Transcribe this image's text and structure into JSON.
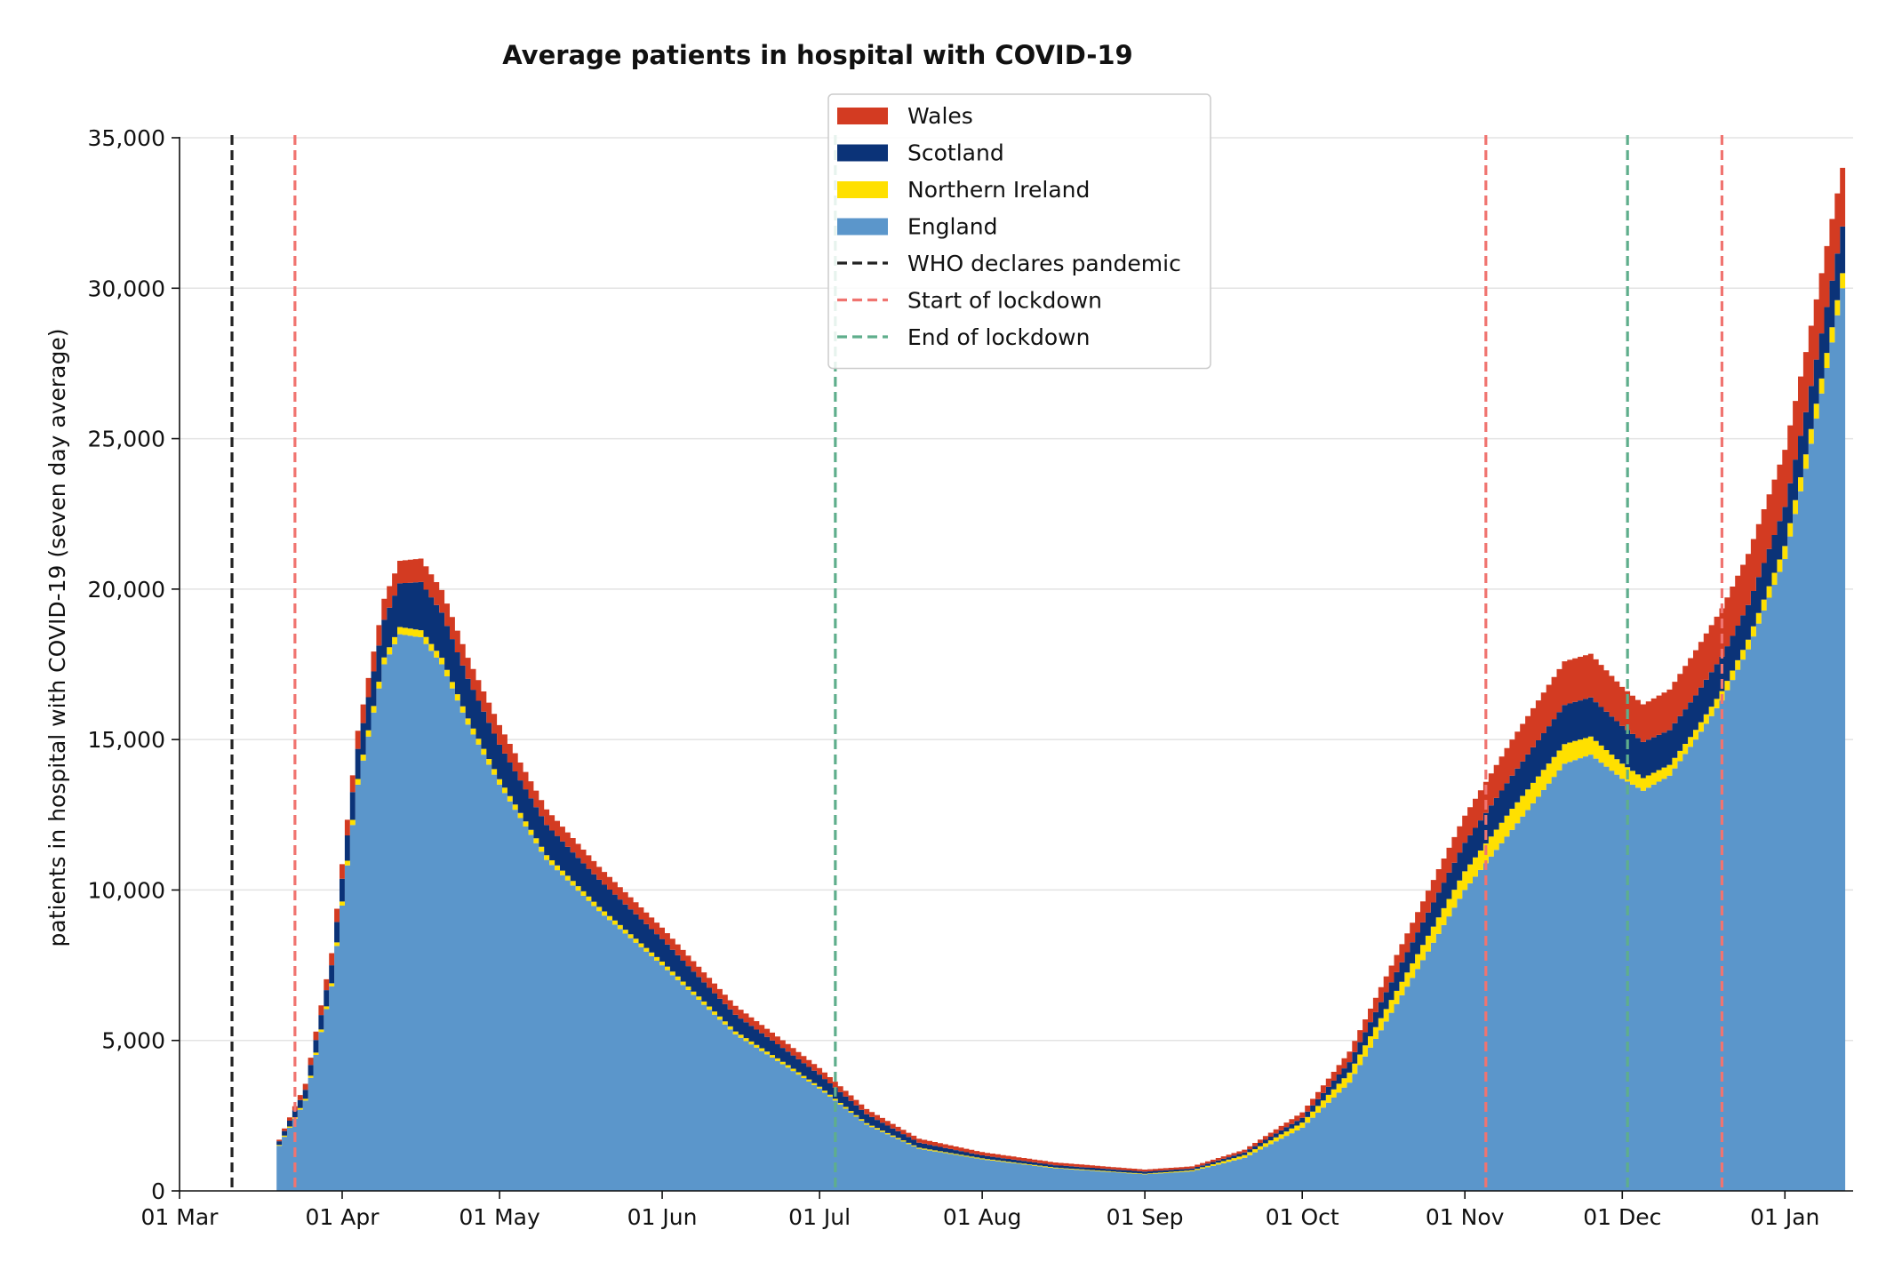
{
  "chart_data": {
    "type": "area",
    "stacked": true,
    "title": "Average patients in hospital with COVID-19",
    "xlabel": "",
    "ylabel": "patients in hospital with COVID-19 (seven day average)",
    "ylim": [
      0,
      35000
    ],
    "xlim": [
      "2020-03-01",
      "2021-01-14"
    ],
    "grid": "y",
    "legend_position": "top-center",
    "x_ticks": [
      "2020-03-01",
      "2020-04-01",
      "2020-05-01",
      "2020-06-01",
      "2020-07-01",
      "2020-08-01",
      "2020-09-01",
      "2020-10-01",
      "2020-11-01",
      "2020-12-01",
      "2021-01-01"
    ],
    "x_tick_labels": [
      "01 Mar",
      "01 Apr",
      "01 May",
      "01 Jun",
      "01 Jul",
      "01 Aug",
      "01 Sep",
      "01 Oct",
      "01 Nov",
      "01 Dec",
      "01 Jan"
    ],
    "y_ticks": [
      0,
      5000,
      10000,
      15000,
      20000,
      25000,
      30000,
      35000
    ],
    "y_tick_labels": [
      "0",
      "5,000",
      "10,000",
      "15,000",
      "20,000",
      "25,000",
      "30,000",
      "35,000"
    ],
    "x": [
      "2020-03-20",
      "2020-03-25",
      "2020-03-30",
      "2020-04-04",
      "2020-04-09",
      "2020-04-12",
      "2020-04-16",
      "2020-04-20",
      "2020-04-25",
      "2020-05-01",
      "2020-05-10",
      "2020-05-20",
      "2020-06-01",
      "2020-06-15",
      "2020-06-25",
      "2020-07-01",
      "2020-07-10",
      "2020-07-20",
      "2020-08-01",
      "2020-08-15",
      "2020-09-01",
      "2020-09-10",
      "2020-09-20",
      "2020-10-01",
      "2020-10-10",
      "2020-10-20",
      "2020-11-01",
      "2020-11-10",
      "2020-11-20",
      "2020-11-25",
      "2020-12-01",
      "2020-12-05",
      "2020-12-10",
      "2020-12-15",
      "2020-12-20",
      "2020-12-25",
      "2021-01-01",
      "2021-01-05",
      "2021-01-08",
      "2021-01-10",
      "2021-01-12"
    ],
    "series": [
      {
        "name": "England",
        "color": "#5b96cb",
        "values": [
          1500,
          3000,
          6800,
          13500,
          17500,
          18500,
          18400,
          17500,
          15500,
          13500,
          11000,
          9300,
          7500,
          5200,
          4100,
          3400,
          2200,
          1400,
          1050,
          750,
          550,
          650,
          1100,
          2100,
          3600,
          6500,
          10000,
          12000,
          14200,
          14500,
          13700,
          13300,
          13800,
          15000,
          16300,
          18000,
          21000,
          24000,
          26500,
          28200,
          30000
        ]
      },
      {
        "name": "Northern Ireland",
        "color": "#ffe000",
        "values": [
          30,
          60,
          100,
          190,
          230,
          240,
          235,
          220,
          200,
          180,
          160,
          140,
          120,
          100,
          80,
          65,
          50,
          35,
          30,
          25,
          20,
          35,
          90,
          170,
          330,
          450,
          620,
          700,
          650,
          600,
          500,
          420,
          360,
          320,
          310,
          320,
          430,
          480,
          500,
          500,
          500
        ]
      },
      {
        "name": "Scotland",
        "color": "#0b3378",
        "values": [
          120,
          300,
          600,
          1000,
          1250,
          1450,
          1600,
          1500,
          1320,
          1150,
          1000,
          900,
          750,
          550,
          450,
          400,
          300,
          170,
          100,
          80,
          70,
          60,
          90,
          160,
          350,
          650,
          950,
          1100,
          1300,
          1300,
          1250,
          1200,
          1150,
          1150,
          1150,
          1150,
          1300,
          1400,
          1500,
          1550,
          1550
        ]
      },
      {
        "name": "Wales",
        "color": "#d33b22",
        "values": [
          50,
          200,
          400,
          600,
          700,
          750,
          780,
          750,
          700,
          650,
          520,
          430,
          380,
          300,
          250,
          220,
          170,
          130,
          110,
          90,
          70,
          70,
          90,
          180,
          350,
          600,
          900,
          1200,
          1450,
          1450,
          1300,
          1250,
          1350,
          1500,
          1600,
          1700,
          1900,
          2000,
          2000,
          2050,
          1950
        ]
      }
    ],
    "events": [
      {
        "name": "WHO declares pandemic",
        "date": "2020-03-11",
        "color": "#222222"
      },
      {
        "name": "Start of lockdown",
        "date": "2020-03-23",
        "color": "#f07470"
      },
      {
        "name": "End of lockdown",
        "date": "2020-07-04",
        "color": "#5fae8c"
      },
      {
        "name": "Start of lockdown",
        "date": "2020-11-05",
        "color": "#f07470"
      },
      {
        "name": "End of lockdown",
        "date": "2020-12-02",
        "color": "#5fae8c"
      },
      {
        "name": "Start of lockdown",
        "date": "2020-12-20",
        "color": "#f07470"
      }
    ],
    "legend": [
      {
        "label": "Wales",
        "kind": "patch",
        "color": "#d33b22"
      },
      {
        "label": "Scotland",
        "kind": "patch",
        "color": "#0b3378"
      },
      {
        "label": "Northern Ireland",
        "kind": "patch",
        "color": "#ffe000"
      },
      {
        "label": "England",
        "kind": "patch",
        "color": "#5b96cb"
      },
      {
        "label": "WHO declares pandemic",
        "kind": "dashed",
        "color": "#222222"
      },
      {
        "label": "Start of lockdown",
        "kind": "dashed",
        "color": "#f07470"
      },
      {
        "label": "End of lockdown",
        "kind": "dashed",
        "color": "#5fae8c"
      }
    ]
  }
}
